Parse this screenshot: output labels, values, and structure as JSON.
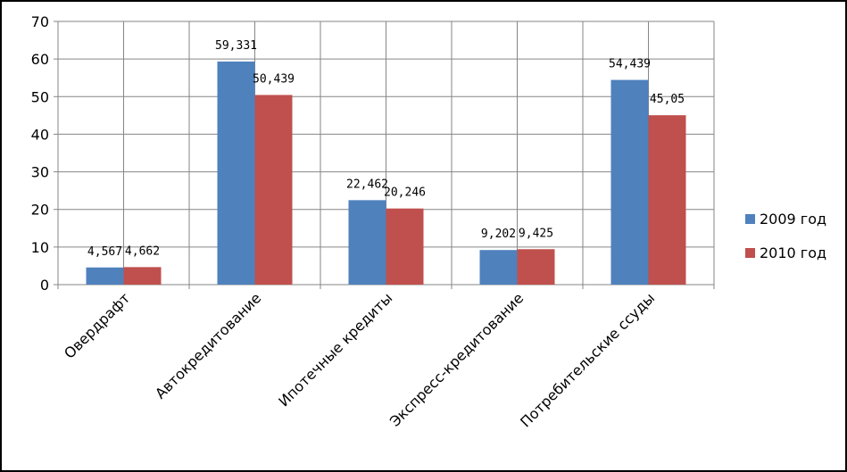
{
  "chart_data": {
    "type": "bar",
    "categories": [
      "Овердрафт",
      "Автокредитование",
      "Ипотечные кредиты",
      "Экспресс-кредитование",
      "Потребительские ссуды"
    ],
    "series": [
      {
        "name": "2009 год",
        "color": "#4F81BD",
        "values": [
          4.567,
          59.331,
          22.462,
          9.202,
          54.439
        ],
        "labels": [
          "4,567",
          "59,331",
          "22,462",
          "9,202",
          "54,439"
        ]
      },
      {
        "name": "2010 год",
        "color": "#C0504D",
        "values": [
          4.662,
          50.439,
          20.246,
          9.425,
          45.05
        ],
        "labels": [
          "4,662",
          "50,439",
          "20,246",
          "9,425",
          "45,05"
        ]
      }
    ],
    "ylim": [
      0,
      70
    ],
    "yticks": [
      "0",
      "10",
      "20",
      "30",
      "40",
      "50",
      "60",
      "70"
    ],
    "grid": true,
    "legend_position": "right"
  }
}
